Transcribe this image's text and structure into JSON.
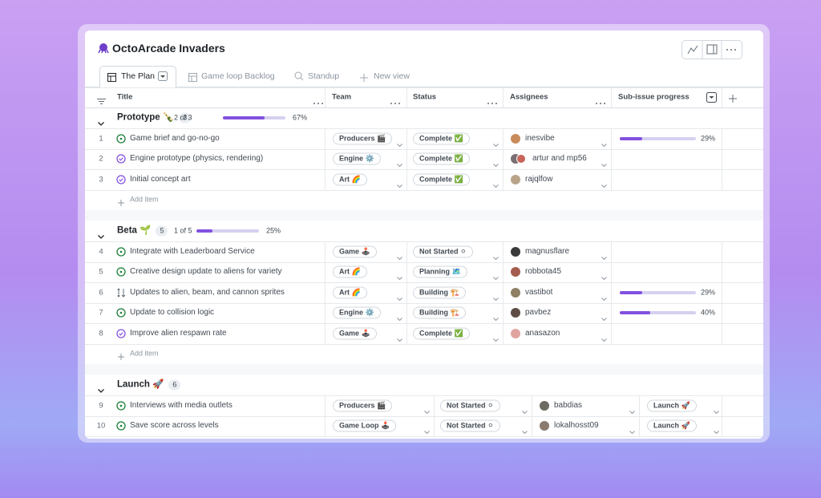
{
  "header": {
    "title": "OctoArcade Invaders"
  },
  "tabs": [
    "The Plan",
    "Game loop Backlog",
    "Standup",
    "New view"
  ],
  "columns": [
    "Title",
    "Team",
    "Status",
    "Assignees",
    "Sub-issue progress"
  ],
  "groups": [
    {
      "name": "Prototype 🍾",
      "count": 3,
      "done": "2 of 3",
      "progress": {
        "value": 67,
        "label": "67%"
      },
      "add": "Add item",
      "items": [
        {
          "number": 1,
          "state": "open",
          "title": "Game brief and go-no-go",
          "team": "Producers 🎬",
          "status": "Complete ✅",
          "assignees": "inesvibe",
          "progress": {
            "value": 29,
            "label": "29%"
          }
        },
        {
          "number": 2,
          "state": "closed",
          "title": "Engine prototype (physics, rendering)",
          "team": "Engine ⚙️",
          "status": "Complete ✅",
          "assignees": "artur and mp56"
        },
        {
          "number": 3,
          "state": "closed",
          "title": "Initial concept art",
          "team": "Art 🌈",
          "status": "Complete ✅",
          "assignees": "rajqlfow"
        }
      ]
    },
    {
      "name": "Beta 🌱",
      "count": 5,
      "done": "1 of 5",
      "progress": {
        "value": 25,
        "label": "25%"
      },
      "add": "Add item",
      "items": [
        {
          "number": 4,
          "state": "open",
          "title": "Integrate with Leaderboard Service",
          "team": "Game 🕹️",
          "status": "Not Started ⚪",
          "assignees": "magnusflare"
        },
        {
          "number": 5,
          "state": "open",
          "title": "Creative design update to aliens for variety",
          "team": "Art 🌈",
          "status": "Planning 🗺️",
          "assignees": "robbota45"
        },
        {
          "number": 6,
          "state": "draft",
          "title": "Updates to alien, beam, and cannon sprites",
          "team": "Art 🌈",
          "status": "Building 🏗️",
          "assignees": "vastibot",
          "progress": {
            "value": 29,
            "label": "29%"
          }
        },
        {
          "number": 7,
          "state": "open",
          "title": "Update to collision logic",
          "team": "Engine ⚙️",
          "status": "Building 🏗️",
          "assignees": "pavbez",
          "progress": {
            "value": 40,
            "label": "40%"
          }
        },
        {
          "number": 8,
          "state": "closed",
          "title": "Improve alien respawn rate",
          "team": "Game 🕹️",
          "status": "Complete ✅",
          "assignees": "anasazon"
        }
      ]
    },
    {
      "name": "Launch 🚀",
      "count": 6,
      "items": [
        {
          "number": 9,
          "state": "open",
          "title": "Interviews with media outlets",
          "team": "Producers 🎬",
          "status": "Not Started ⚪",
          "assignees": "babdias",
          "phase": "Launch 🚀"
        },
        {
          "number": 10,
          "state": "open",
          "title": "Save score across levels",
          "team": "Game Loop 🕹️",
          "status": "Not Started ⚪",
          "assignees": "lokalhosst09",
          "phase": "Launch 🚀"
        }
      ]
    }
  ]
}
